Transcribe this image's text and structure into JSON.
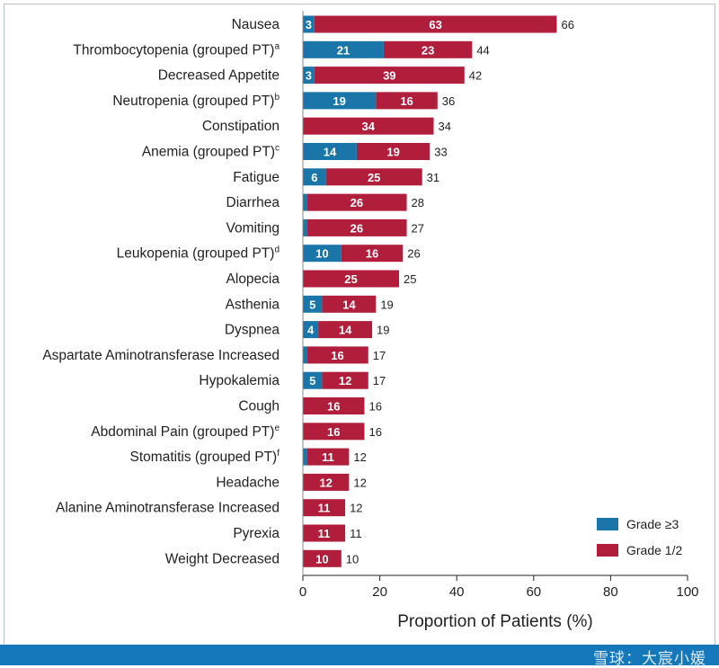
{
  "chart_data": {
    "type": "bar",
    "orientation": "horizontal",
    "stacked": true,
    "categories": [
      {
        "name": "Nausea",
        "sup": ""
      },
      {
        "name": "Thrombocytopenia (grouped PT)",
        "sup": "a"
      },
      {
        "name": "Decreased Appetite",
        "sup": ""
      },
      {
        "name": "Neutropenia (grouped PT)",
        "sup": "b"
      },
      {
        "name": "Constipation",
        "sup": ""
      },
      {
        "name": "Anemia (grouped PT)",
        "sup": "c"
      },
      {
        "name": "Fatigue",
        "sup": ""
      },
      {
        "name": "Diarrhea",
        "sup": ""
      },
      {
        "name": "Vomiting",
        "sup": ""
      },
      {
        "name": "Leukopenia (grouped PT)",
        "sup": "d"
      },
      {
        "name": "Alopecia",
        "sup": ""
      },
      {
        "name": "Asthenia",
        "sup": ""
      },
      {
        "name": "Dyspnea",
        "sup": ""
      },
      {
        "name": "Aspartate Aminotransferase Increased",
        "sup": ""
      },
      {
        "name": "Hypokalemia",
        "sup": ""
      },
      {
        "name": "Cough",
        "sup": ""
      },
      {
        "name": "Abdominal Pain (grouped PT)",
        "sup": "e"
      },
      {
        "name": "Stomatitis (grouped PT)",
        "sup": "f"
      },
      {
        "name": "Headache",
        "sup": ""
      },
      {
        "name": "Alanine Aminotransferase Increased",
        "sup": ""
      },
      {
        "name": "Pyrexia",
        "sup": ""
      },
      {
        "name": "Weight Decreased",
        "sup": ""
      }
    ],
    "series": [
      {
        "name": "Grade ≥3",
        "color": "#1a76a8",
        "values": [
          3,
          21,
          3,
          19,
          0,
          14,
          6,
          1,
          1,
          10,
          0,
          5,
          4,
          1,
          5,
          0,
          0,
          1,
          0,
          0,
          0,
          0
        ],
        "labels": [
          "3",
          "21",
          "3",
          "19",
          "",
          "14",
          "6",
          "1",
          "1",
          "10",
          "",
          "5",
          "4",
          "1",
          "5",
          "",
          "",
          "1",
          "",
          "",
          "",
          ""
        ]
      },
      {
        "name": "Grade 1/2",
        "color": "#b01e3c",
        "values": [
          63,
          23,
          39,
          16,
          34,
          19,
          25,
          26,
          26,
          16,
          25,
          14,
          14,
          16,
          12,
          16,
          16,
          11,
          12,
          11,
          11,
          10
        ],
        "labels": [
          "63",
          "23",
          "39",
          "16",
          "34",
          "19",
          "25",
          "26",
          "26",
          "16",
          "25",
          "14",
          "14",
          "16",
          "12",
          "16",
          "16",
          "11",
          "12",
          "11",
          "11",
          "10"
        ]
      }
    ],
    "totals": [
      "66",
      "44",
      "42",
      "36",
      "34",
      "33",
      "31",
      "28",
      "27",
      "26",
      "25",
      "19",
      "19",
      "17",
      "17",
      "16",
      "16",
      "12",
      "12",
      "12",
      "11",
      "10"
    ],
    "xlabel": "Proportion of Patients (%)",
    "xlim": [
      0,
      100
    ],
    "xticks": [
      "0",
      "20",
      "40",
      "60",
      "80",
      "100"
    ],
    "legend_position": "bottom-right",
    "grid": false
  },
  "watermark": "雪球：大宸小媛"
}
